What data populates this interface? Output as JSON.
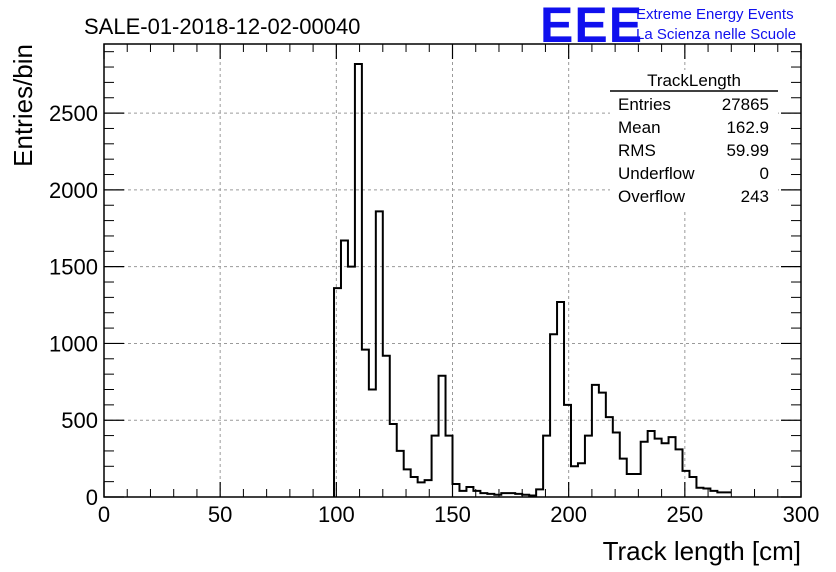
{
  "header": {
    "title": "SALE-01-2018-12-02-00040",
    "logo_letters": "EEE",
    "logo_line1": "Extreme Energy Events",
    "logo_line2": "La Scienza nelle Scuole"
  },
  "stats": {
    "title": "TrackLength",
    "rows": [
      {
        "label": "Entries",
        "value": "27865"
      },
      {
        "label": "Mean",
        "value": "162.9"
      },
      {
        "label": "RMS",
        "value": "59.99"
      },
      {
        "label": "Underflow",
        "value": "0"
      },
      {
        "label": "Overflow",
        "value": "243"
      }
    ]
  },
  "chart_data": {
    "type": "bar",
    "histogram": true,
    "xlabel": "Track length [cm]",
    "ylabel": "Entries/bin",
    "xlim": [
      0,
      300
    ],
    "ylim": [
      0,
      2950
    ],
    "grid": true,
    "bin_width": 3,
    "bin_start": 99,
    "x_ticks": [
      0,
      50,
      100,
      150,
      200,
      250,
      300
    ],
    "y_ticks": [
      0,
      500,
      1000,
      1500,
      2000,
      2500
    ],
    "values": [
      1360,
      1670,
      1500,
      2820,
      960,
      700,
      1860,
      920,
      475,
      300,
      180,
      130,
      95,
      110,
      400,
      790,
      400,
      85,
      40,
      65,
      40,
      25,
      20,
      15,
      25,
      25,
      20,
      15,
      10,
      50,
      400,
      1060,
      1270,
      600,
      200,
      220,
      400,
      730,
      680,
      520,
      420,
      250,
      150,
      150,
      360,
      430,
      380,
      350,
      390,
      310,
      170,
      130,
      60,
      55,
      40,
      30,
      30
    ]
  }
}
